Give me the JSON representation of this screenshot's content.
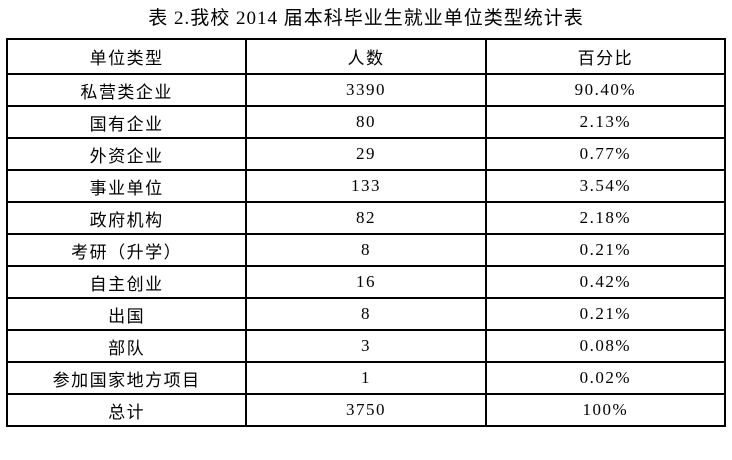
{
  "page": {
    "background_color": "#ffffff",
    "text_color": "#000000",
    "border_color": "#000000"
  },
  "title": "表 2.我校 2014 届本科毕业生就业单位类型统计表",
  "table": {
    "headers": [
      "单位类型",
      "人数",
      "百分比"
    ],
    "rows": [
      {
        "type": "私营类企业",
        "count": "3390",
        "percent": "90.40%"
      },
      {
        "type": "国有企业",
        "count": "80",
        "percent": "2.13%"
      },
      {
        "type": "外资企业",
        "count": "29",
        "percent": "0.77%"
      },
      {
        "type": "事业单位",
        "count": "133",
        "percent": "3.54%"
      },
      {
        "type": "政府机构",
        "count": "82",
        "percent": "2.18%"
      },
      {
        "type": "考研（升学）",
        "count": "8",
        "percent": "0.21%"
      },
      {
        "type": "自主创业",
        "count": "16",
        "percent": "0.42%"
      },
      {
        "type": "出国",
        "count": "8",
        "percent": "0.21%"
      },
      {
        "type": "部队",
        "count": "3",
        "percent": "0.08%"
      },
      {
        "type": "参加国家地方项目",
        "count": "1",
        "percent": "0.02%"
      },
      {
        "type": "总计",
        "count": "3750",
        "percent": "100%"
      }
    ]
  },
  "chart_data": {
    "type": "table",
    "title": "表 2.我校 2014 届本科毕业生就业单位类型统计表",
    "columns": [
      "单位类型",
      "人数",
      "百分比"
    ],
    "rows": [
      [
        "私营类企业",
        3390,
        "90.40%"
      ],
      [
        "国有企业",
        80,
        "2.13%"
      ],
      [
        "外资企业",
        29,
        "0.77%"
      ],
      [
        "事业单位",
        133,
        "3.54%"
      ],
      [
        "政府机构",
        82,
        "2.18%"
      ],
      [
        "考研（升学）",
        8,
        "0.21%"
      ],
      [
        "自主创业",
        16,
        "0.42%"
      ],
      [
        "出国",
        8,
        "0.21%"
      ],
      [
        "部队",
        3,
        "0.08%"
      ],
      [
        "参加国家地方项目",
        1,
        "0.02%"
      ],
      [
        "总计",
        3750,
        "100%"
      ]
    ]
  }
}
